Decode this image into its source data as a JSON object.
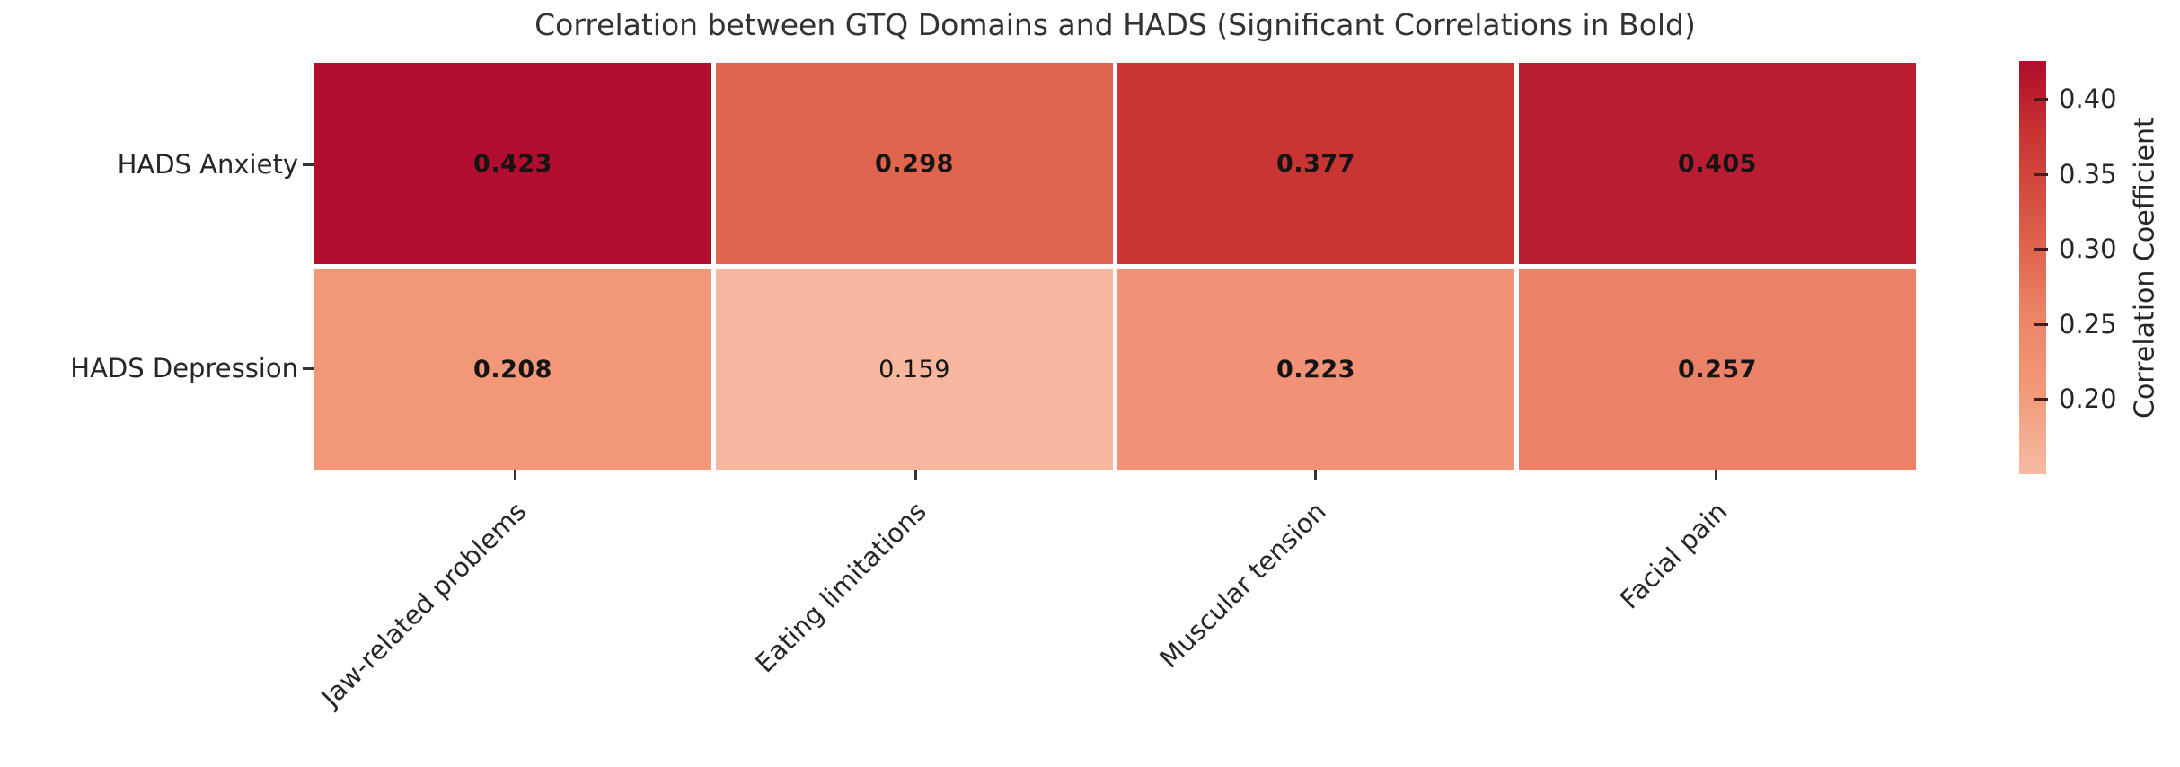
{
  "chart_data": {
    "type": "heatmap",
    "title": "Correlation between GTQ Domains and HADS (Significant Correlations in Bold)",
    "rows": [
      "HADS Anxiety",
      "HADS Depression"
    ],
    "columns": [
      "Jaw-related problems",
      "Eating limitations",
      "Muscular tension",
      "Facial pain"
    ],
    "values": [
      [
        0.423,
        0.298,
        0.377,
        0.405
      ],
      [
        0.208,
        0.159,
        0.223,
        0.257
      ]
    ],
    "value_labels": [
      [
        "0.423",
        "0.298",
        "0.377",
        "0.405"
      ],
      [
        "0.208",
        "0.159",
        "0.223",
        "0.257"
      ]
    ],
    "bold_mask": [
      [
        true,
        true,
        true,
        true
      ],
      [
        true,
        false,
        true,
        true
      ]
    ],
    "cell_colors": [
      [
        "#b20d2e",
        "#e0654e",
        "#c83532",
        "#b91d32"
      ],
      [
        "#f29878",
        "#f6b79e",
        "#f19176",
        "#eb8166"
      ]
    ],
    "colorbar": {
      "label": "Correlation Coefficient",
      "ticks": [
        "0.40",
        "0.35",
        "0.30",
        "0.25",
        "0.20"
      ],
      "range_top": 0.425,
      "range_bottom": 0.148,
      "gradient_bottom_to_top": [
        "#f7bba2",
        "#f29878",
        "#ec8366",
        "#e0654e",
        "#c83532",
        "#b00c2b"
      ]
    },
    "layout_hints": {
      "x_tick_rotation": 45,
      "grid_lines": "white-separators",
      "legend_position": "right-colorbar"
    }
  },
  "colors": {
    "background": "#ffffff",
    "title_text": "#333333",
    "axis_text": "#262626",
    "cell_text": "#141414",
    "separator": "#ffffff"
  }
}
